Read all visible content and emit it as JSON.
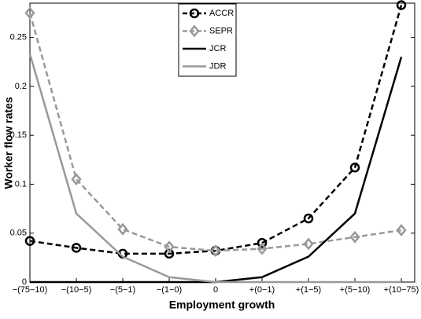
{
  "chart_data": {
    "type": "line",
    "x_label": "Employment growth",
    "y_label": "Worker flow rates",
    "categories": [
      "−(75−10)",
      "−(10−5)",
      "−(5−1)",
      "−(1−0)",
      "0",
      "+(0−1)",
      "+(1−5)",
      "+(5−10)",
      "+(10−75)"
    ],
    "series": [
      {
        "name": "ACCR",
        "color": "#000000",
        "style": "dashed",
        "marker": "circle",
        "values": [
          0.042,
          0.035,
          0.029,
          0.029,
          0.032,
          0.04,
          0.065,
          0.117,
          0.283
        ]
      },
      {
        "name": "SEPR",
        "color": "#999999",
        "style": "dashed",
        "marker": "diamond",
        "values": [
          0.275,
          0.105,
          0.054,
          0.036,
          0.032,
          0.034,
          0.039,
          0.046,
          0.053
        ]
      },
      {
        "name": "JCR",
        "color": "#000000",
        "style": "solid",
        "values": [
          0,
          0,
          0,
          0,
          0,
          0.005,
          0.026,
          0.07,
          0.23
        ]
      },
      {
        "name": "JDR",
        "color": "#999999",
        "style": "solid",
        "values": [
          0.233,
          0.07,
          0.026,
          0.005,
          0,
          0,
          0,
          0,
          0
        ]
      }
    ],
    "ylim": [
      0,
      0.285
    ],
    "yticks": [
      0,
      0.05,
      0.1,
      0.15,
      0.2,
      0.25
    ]
  }
}
